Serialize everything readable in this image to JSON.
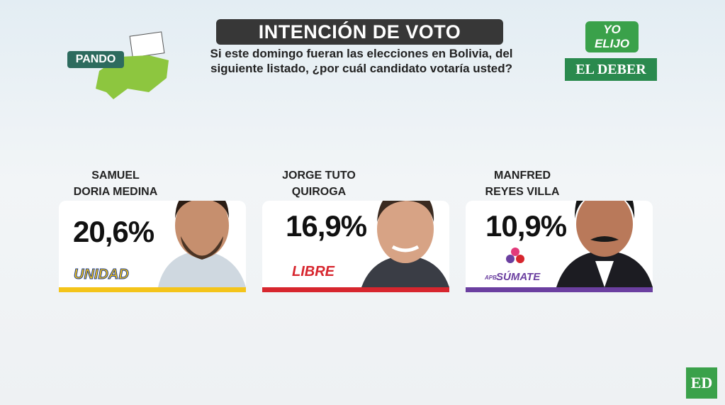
{
  "header": {
    "title": "INTENCIÓN DE VOTO",
    "question_lines": [
      "Si este domingo fueran las elecciones en Bolivia, del",
      "siguiente listado, ¿por cuál candidato votaría usted?"
    ],
    "region": "PANDO",
    "logo_top": "YO ELIJO",
    "logo_bottom": "EL DEBER"
  },
  "candidates": [
    {
      "name_lines": [
        "SAMUEL",
        "DORIA MEDINA"
      ],
      "percent": "20,6%",
      "party": "UNIDAD"
    },
    {
      "name_lines": [
        "JORGE TUTO",
        "QUIROGA"
      ],
      "percent": "16,9%",
      "party": "LIBRE"
    },
    {
      "name_lines": [
        "MANFRED",
        "REYES VILLA"
      ],
      "percent": "10,9%",
      "party_prefix": "APB",
      "party": "SÚMATE"
    }
  ],
  "footer": {
    "badge": "ED"
  }
}
